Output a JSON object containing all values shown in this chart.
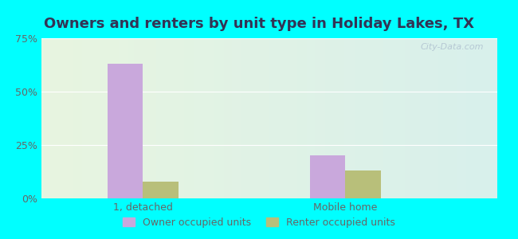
{
  "title": "Owners and renters by unit type in Holiday Lakes, TX",
  "categories": [
    "1, detached",
    "Mobile home"
  ],
  "owner_values": [
    63.0,
    20.0
  ],
  "renter_values": [
    8.0,
    13.0
  ],
  "owner_color": "#c9a8dc",
  "renter_color": "#b8bf7a",
  "ylim": [
    0,
    75
  ],
  "yticks": [
    0,
    25,
    50,
    75
  ],
  "yticklabels": [
    "0%",
    "25%",
    "50%",
    "75%"
  ],
  "legend_owner": "Owner occupied units",
  "legend_renter": "Renter occupied units",
  "bar_width": 0.35,
  "group_positions": [
    1.0,
    3.0
  ],
  "xlim": [
    0,
    4.5
  ],
  "watermark": "City-Data.com",
  "outer_bg": "#00ffff",
  "title_fontsize": 13,
  "tick_fontsize": 9,
  "legend_fontsize": 9,
  "title_color": "#333355",
  "tick_color": "#666666"
}
